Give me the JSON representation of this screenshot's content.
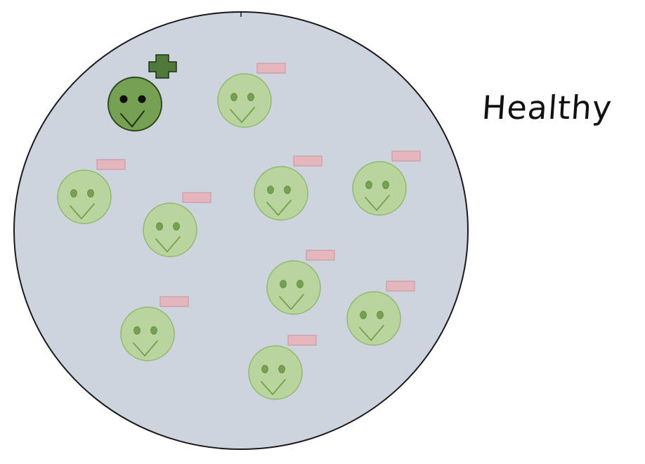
{
  "title": "Healthy",
  "colors": {
    "background": "#ffffff",
    "circle_fill": "#cdd4dd",
    "circle_stroke": "#1a1a1a",
    "highlight_face": "#76a153",
    "highlight_stroke": "#2d4a1d",
    "plus_fill": "#4f7a3b",
    "faded_face": "#b9d49d",
    "faded_stroke": "#8fb870",
    "faded_eye": "#76a153",
    "tag_fill": "#e4b7bd",
    "tag_stroke": "#c9919a"
  },
  "highlighted_cell": {
    "icon": "plus-icon",
    "marker": "plus"
  },
  "cells": [
    {
      "id": 1,
      "tag": true
    },
    {
      "id": 2,
      "tag": true
    },
    {
      "id": 3,
      "tag": true
    },
    {
      "id": 4,
      "tag": true
    },
    {
      "id": 5,
      "tag": true
    },
    {
      "id": 6,
      "tag": true
    },
    {
      "id": 7,
      "tag": true
    },
    {
      "id": 8,
      "tag": true
    },
    {
      "id": 9,
      "tag": true
    },
    {
      "id": 10,
      "tag": true
    }
  ]
}
